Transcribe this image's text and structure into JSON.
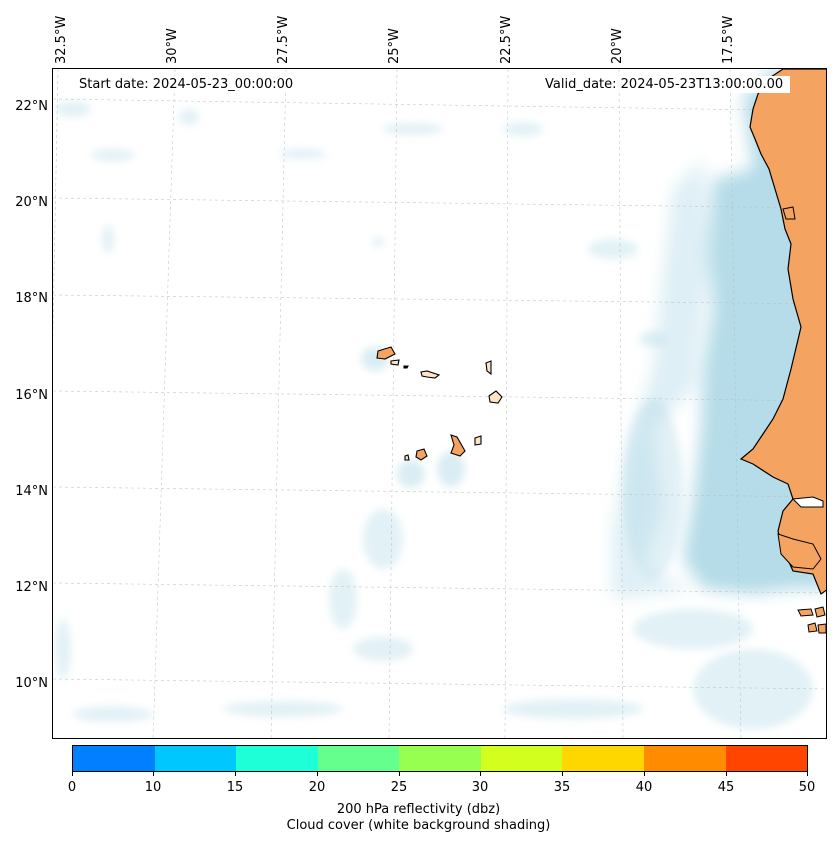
{
  "map": {
    "start_date": "Start date: 2024-05-23_00:00:00",
    "valid_date": "Valid_date: 2024-05-23T13:00:00.00",
    "lon_labels": [
      "32.5°W",
      "30°W",
      "27.5°W",
      "25°W",
      "22.5°W",
      "20°W",
      "17.5°W"
    ],
    "lat_labels": [
      "22°N",
      "20°N",
      "18°N",
      "16°N",
      "14°N",
      "12°N",
      "10°N"
    ],
    "colors": {
      "land": "#f4a460",
      "cloud": "#add8e6",
      "coast": "#000000",
      "island_light": "#ffe4c4"
    }
  },
  "colorbar": {
    "ticks": [
      "0",
      "10",
      "15",
      "20",
      "25",
      "30",
      "35",
      "40",
      "45",
      "50"
    ],
    "colors": [
      "#0080ff",
      "#00c8ff",
      "#1effd8",
      "#64ff8c",
      "#96ff50",
      "#d2ff1e",
      "#ffd700",
      "#ff8c00",
      "#ff4500"
    ],
    "label_line1": "200 hPa reflectivity (dbz)",
    "label_line2": "Cloud cover (white background shading)"
  }
}
